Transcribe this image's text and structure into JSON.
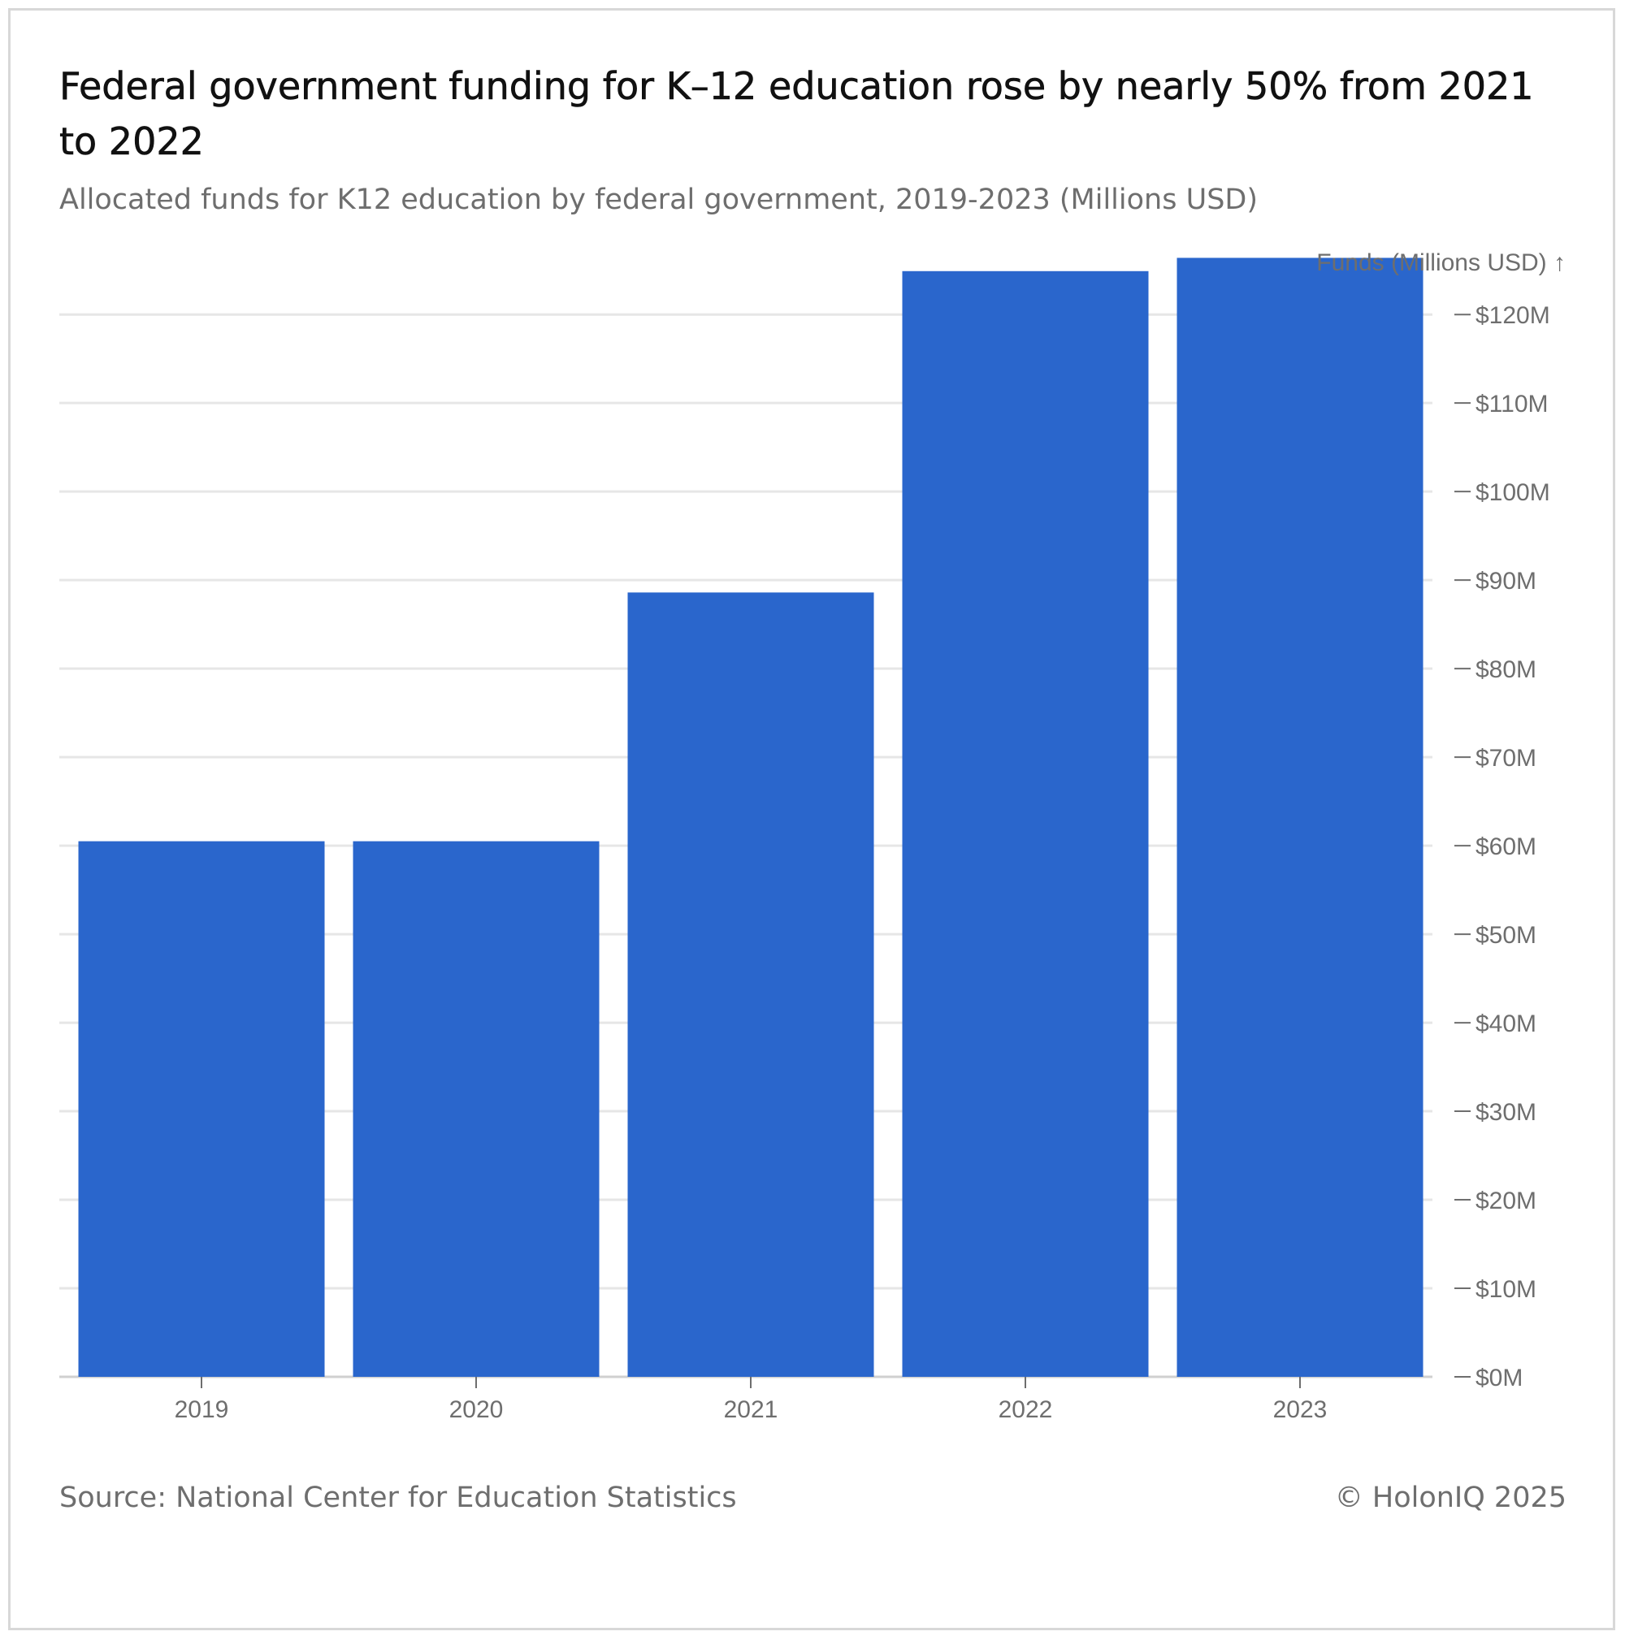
{
  "title": "Federal government funding for K–12 education rose by nearly 50% from 2021 to 2022",
  "subtitle": "Allocated funds for K12 education by federal government, 2019-2023 (Millions USD)",
  "source": "Source: National Center for Education Statistics",
  "credit": "© HolonIQ 2025",
  "colors": {
    "bar": "#2a66cc",
    "grid": "#e6e6e6",
    "text": "#6e6e6e",
    "title": "#111111"
  },
  "chart_data": {
    "type": "bar",
    "categories": [
      "2019",
      "2020",
      "2021",
      "2022",
      "2023"
    ],
    "values": [
      60.5,
      60.5,
      88.6,
      124.9,
      126.4
    ],
    "ylabel": "Funds (Millions USD) ↑",
    "ylim": [
      0,
      128
    ],
    "yticks": [
      0,
      10,
      20,
      30,
      40,
      50,
      60,
      70,
      80,
      90,
      100,
      110,
      120
    ],
    "ytick_labels": [
      "$0M",
      "$10M",
      "$20M",
      "$30M",
      "$40M",
      "$50M",
      "$60M",
      "$70M",
      "$80M",
      "$90M",
      "$100M",
      "$110M",
      "$120M"
    ],
    "y_axis_position": "right",
    "grid": true
  }
}
